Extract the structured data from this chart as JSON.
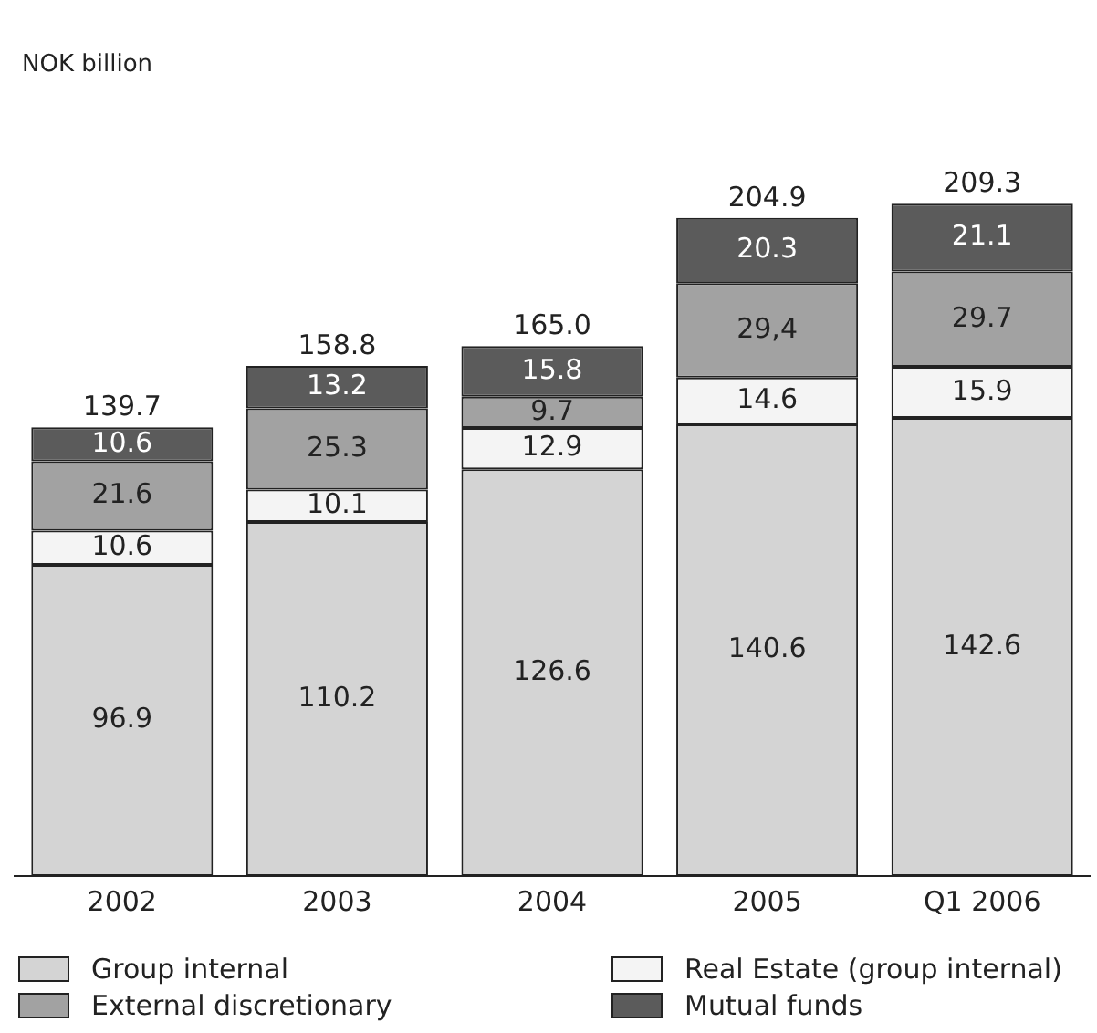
{
  "chart_data": {
    "type": "bar",
    "stacked": true,
    "annotations": [
      "NOK billion"
    ],
    "categories": [
      "2002",
      "2003",
      "2004",
      "2005",
      "Q1 2006"
    ],
    "series": [
      {
        "name": "Group internal",
        "color": "#d4d4d4",
        "values": [
          96.9,
          110.2,
          126.6,
          140.6,
          142.6
        ],
        "value_labels": [
          "96.9",
          "110.2",
          "126.6",
          "140.6",
          "142.6"
        ]
      },
      {
        "name": "Real Estate (group internal)",
        "color": "#f4f4f4",
        "values": [
          10.6,
          10.1,
          12.9,
          14.6,
          15.9
        ],
        "value_labels": [
          "10.6",
          "10.1",
          "12.9",
          "14.6",
          "15.9"
        ]
      },
      {
        "name": "External discretionary",
        "color": "#a2a2a2",
        "values": [
          21.6,
          25.3,
          9.7,
          29.4,
          29.7
        ],
        "value_labels": [
          "21.6",
          "25.3",
          "9.7",
          "29,4",
          "29.7"
        ]
      },
      {
        "name": "Mutual funds",
        "color": "#5b5b5b",
        "values": [
          10.6,
          13.2,
          15.8,
          20.3,
          21.1
        ],
        "value_labels": [
          "10.6",
          "13.2",
          "15.8",
          "20.3",
          "21.1"
        ]
      }
    ],
    "totals": [
      "139.7",
      "158.8",
      "165.0",
      "204.9",
      "209.3"
    ],
    "grid": false,
    "legend": "bottom"
  }
}
